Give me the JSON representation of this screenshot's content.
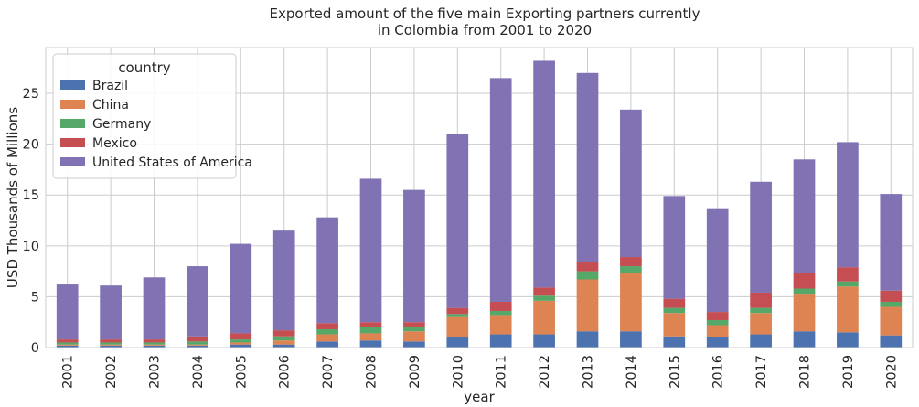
{
  "chart_data": {
    "type": "bar",
    "stacked": true,
    "title": [
      "Exported amount of the five main Exporting partners currently",
      "in Colombia from 2001 to 2020"
    ],
    "xlabel": "year",
    "ylabel": "USD Thousands of Millions",
    "ylim": [
      0,
      29.5
    ],
    "yticks": [
      0,
      5,
      10,
      15,
      20,
      25
    ],
    "grid": true,
    "legend": {
      "title": "country",
      "placement": "top-left"
    },
    "categories": [
      "2001",
      "2002",
      "2003",
      "2004",
      "2005",
      "2006",
      "2007",
      "2008",
      "2009",
      "2010",
      "2011",
      "2012",
      "2013",
      "2014",
      "2015",
      "2016",
      "2017",
      "2018",
      "2019",
      "2020"
    ],
    "series": [
      {
        "name": "Brazil",
        "color": "#4c72b0",
        "values": [
          0.2,
          0.2,
          0.2,
          0.2,
          0.3,
          0.3,
          0.6,
          0.7,
          0.6,
          1.0,
          1.3,
          1.3,
          1.6,
          1.6,
          1.1,
          1.0,
          1.3,
          1.6,
          1.5,
          1.2
        ]
      },
      {
        "name": "China",
        "color": "#dd8452",
        "values": [
          0.1,
          0.1,
          0.1,
          0.1,
          0.2,
          0.4,
          0.7,
          0.7,
          1.0,
          2.0,
          1.9,
          3.3,
          5.1,
          5.7,
          2.3,
          1.2,
          2.1,
          3.7,
          4.5,
          2.8
        ]
      },
      {
        "name": "Germany",
        "color": "#55a868",
        "values": [
          0.2,
          0.2,
          0.2,
          0.3,
          0.3,
          0.4,
          0.5,
          0.6,
          0.4,
          0.3,
          0.4,
          0.5,
          0.8,
          0.7,
          0.5,
          0.5,
          0.5,
          0.5,
          0.5,
          0.5
        ]
      },
      {
        "name": "Mexico",
        "color": "#c44e52",
        "values": [
          0.3,
          0.3,
          0.3,
          0.5,
          0.6,
          0.6,
          0.6,
          0.5,
          0.5,
          0.6,
          0.9,
          0.8,
          0.9,
          0.9,
          0.9,
          0.8,
          1.5,
          1.5,
          1.4,
          1.1
        ]
      },
      {
        "name": "United States of America",
        "color": "#8172b3",
        "values": [
          5.4,
          5.3,
          6.1,
          6.9,
          8.8,
          9.8,
          10.4,
          14.1,
          13.0,
          17.1,
          22.0,
          22.3,
          18.6,
          14.5,
          10.1,
          10.2,
          10.9,
          11.2,
          12.3,
          9.5
        ]
      }
    ]
  }
}
